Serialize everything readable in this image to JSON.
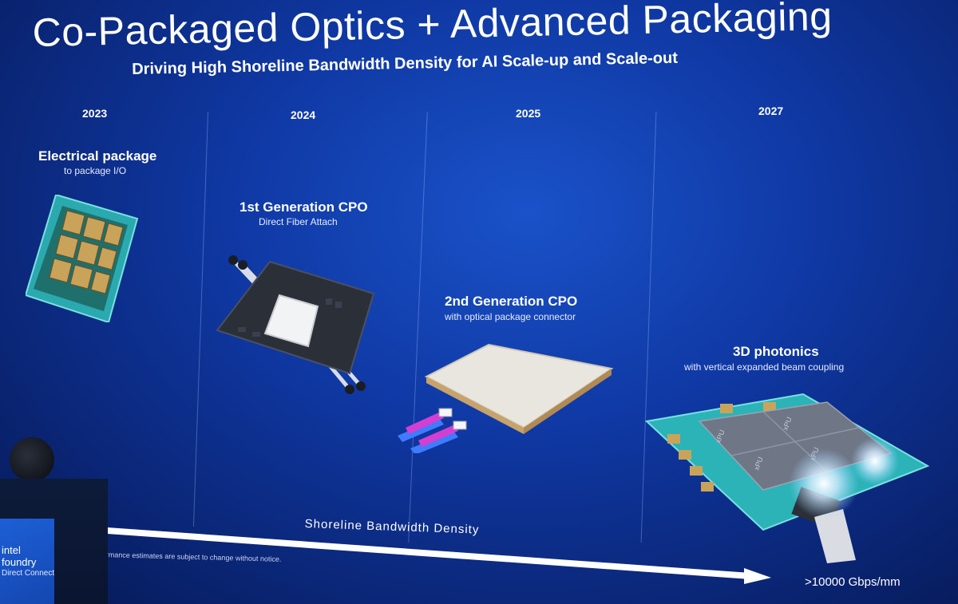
{
  "title": "Co-Packaged Optics + Advanced Packaging",
  "subtitle": "Driving High Shoreline Bandwidth Density for AI Scale-up and Scale-out",
  "stages": [
    {
      "year": "2023",
      "title": "Electrical package",
      "subtitle": "to package I/O"
    },
    {
      "year": "2024",
      "title": "1st Generation CPO",
      "subtitle": "Direct Fiber Attach"
    },
    {
      "year": "2025",
      "title": "2nd Generation CPO",
      "subtitle": "with optical package connector"
    },
    {
      "year": "2027",
      "title": "3D photonics",
      "subtitle": "with vertical expanded beam coupling"
    }
  ],
  "chip_labels": [
    "xPU",
    "xPU",
    "xPU",
    "xPU"
  ],
  "arrow": {
    "label": "Shoreline Bandwidth Density",
    "value": ">10000 Gbps/mm"
  },
  "disclaimer": "ormance estimates are subject to change without notice.",
  "branding": {
    "line1": "intel",
    "line2": "foundry",
    "line3": "Direct Connect"
  },
  "colors": {
    "background": "#0f38a3",
    "substrate_teal": "#2bb3b8",
    "gold_contact": "#c9a35a",
    "fiber_magenta": "#d43fd1",
    "fiber_blue": "#3f7bff"
  }
}
